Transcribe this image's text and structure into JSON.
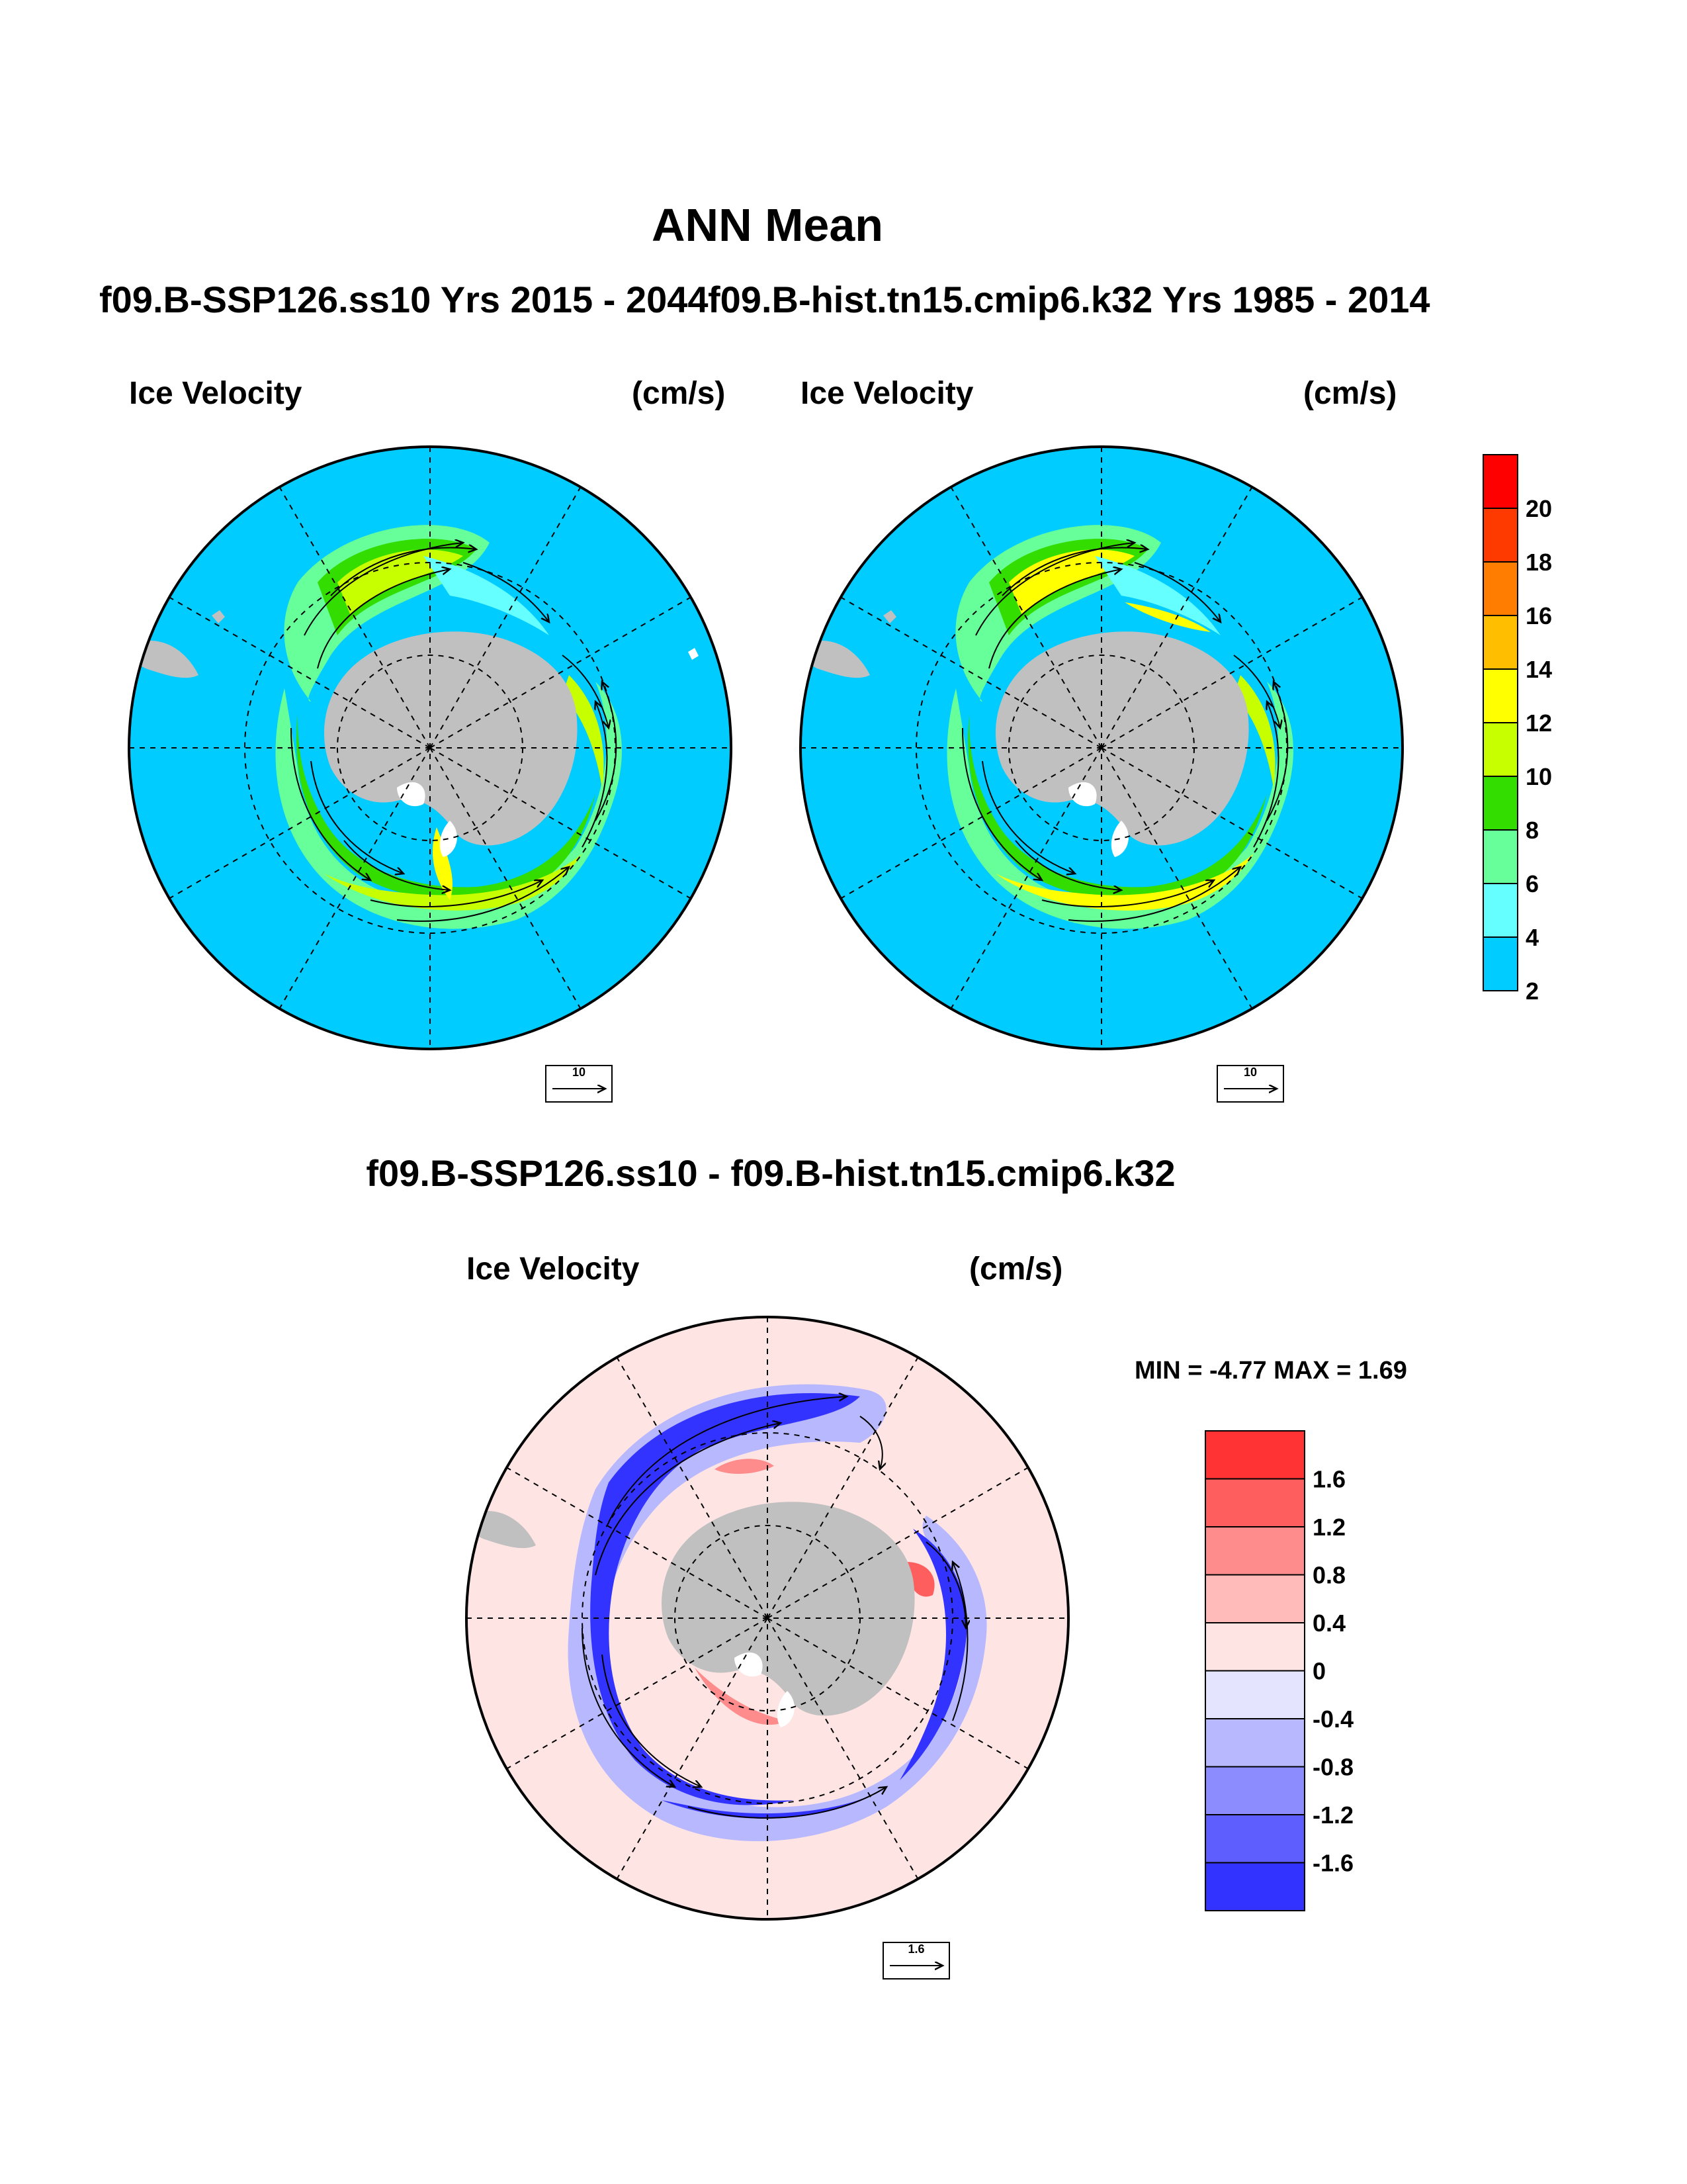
{
  "main_title": "ANN Mean",
  "case1_title": "f09.B-SSP126.ss10  Yrs 2015 - 2044",
  "case2_title": "f09.B-hist.tn15.cmip6.k32  Yrs 1985 - 2014",
  "diff_title": "f09.B-SSP126.ss10 - f09.B-hist.tn15.cmip6.k32",
  "panels": [
    {
      "field": "Ice Velocity",
      "units": "(cm/s)",
      "ref_vector": "10"
    },
    {
      "field": "Ice Velocity",
      "units": "(cm/s)",
      "ref_vector": "10"
    },
    {
      "field": "Ice Velocity",
      "units": "(cm/s)",
      "ref_vector": "1.6"
    }
  ],
  "minmax_text": "MIN =  -4.77 MAX =   1.69",
  "colorbar_main": {
    "labels": [
      "20",
      "18",
      "16",
      "14",
      "12",
      "10",
      "8",
      "6",
      "4",
      "2"
    ],
    "colors": [
      "#ff0000",
      "#ff3a00",
      "#ff7d00",
      "#ffbf00",
      "#ffff00",
      "#c8ff00",
      "#33dd00",
      "#66ff99",
      "#66ffff",
      "#00ccff"
    ]
  },
  "colorbar_diff": {
    "labels": [
      "1.6",
      "1.2",
      "0.8",
      "0.4",
      "0",
      "-0.4",
      "-0.8",
      "-1.2",
      "-1.6"
    ],
    "colors": [
      "#ff3333",
      "#ff5e5e",
      "#ff8c8c",
      "#ffbaba",
      "#ffe4e4",
      "#e4e4ff",
      "#b8b8ff",
      "#8c8cff",
      "#5e5eff",
      "#3333ff"
    ]
  },
  "colors": {
    "ocean": "#00ccff",
    "land": "#c0c0c0",
    "diff_background": "#ffe4e4",
    "diff_negative": "#3333ff"
  }
}
